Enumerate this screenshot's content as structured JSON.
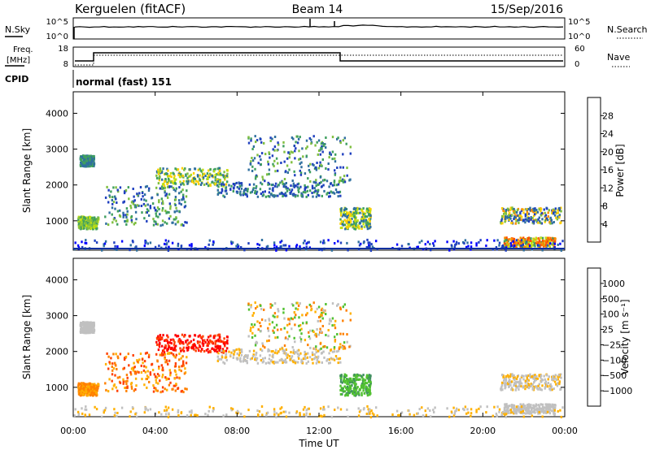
{
  "header": {
    "station": "Kerguelen (fitACF)",
    "beam": "Beam 14",
    "date": "15/Sep/2016"
  },
  "panels": {
    "nsky": {
      "label": "N.Sky",
      "ticks_left": [
        "10^5",
        "10^0"
      ],
      "ticks_right": [
        "10^5",
        "10^0"
      ],
      "right_label": "N.Search"
    },
    "freq": {
      "label_top": "Freq.",
      "label_unit": "[MHz]",
      "ticks_left": [
        "18",
        "8"
      ],
      "ticks_right": [
        "60",
        "0"
      ],
      "right_label": "Nave"
    },
    "cpid": {
      "label": "CPID",
      "text": "normal (fast) 151"
    }
  },
  "chart_data": [
    {
      "type": "heatmap",
      "parameter": "power",
      "ylabel": "Slant Range [km]",
      "xlabel": "",
      "ylim": [
        180,
        4600
      ],
      "xlim_hours": [
        0,
        24
      ],
      "yticks": [
        "4000",
        "3000",
        "2000",
        "1000"
      ],
      "colorbar": {
        "label": "Power [dB]",
        "ticks": [
          "28",
          "24",
          "20",
          "16",
          "12",
          "8",
          "4"
        ],
        "colors": [
          "#0000ff",
          "#1f3fbf",
          "#2f6f9f",
          "#3f9f5f",
          "#7fbf3f",
          "#c0e010",
          "#ffd000",
          "#ff9000",
          "#ff5000",
          "#ff0000"
        ]
      }
    },
    {
      "type": "heatmap",
      "parameter": "velocity",
      "ylabel": "Slant Range [km]",
      "xlabel": "Time UT",
      "ylim": [
        180,
        4600
      ],
      "xlim_hours": [
        0,
        24
      ],
      "yticks": [
        "4000",
        "3000",
        "2000",
        "1000"
      ],
      "xticks": [
        "00:00",
        "04:00",
        "08:00",
        "12:00",
        "16:00",
        "20:00",
        "00:00"
      ],
      "colorbar": {
        "label": "Velocity [m s⁻¹]",
        "ticks": [
          "1000",
          "500",
          "100",
          "25",
          "−25",
          "−100",
          "−500",
          "−1000"
        ],
        "colors": [
          "#1030d0",
          "#3050b0",
          "#408f60",
          "#50c030",
          "#c0c0c0",
          "#ffb000",
          "#ff8000",
          "#ff4000",
          "#ff0000"
        ]
      }
    }
  ]
}
